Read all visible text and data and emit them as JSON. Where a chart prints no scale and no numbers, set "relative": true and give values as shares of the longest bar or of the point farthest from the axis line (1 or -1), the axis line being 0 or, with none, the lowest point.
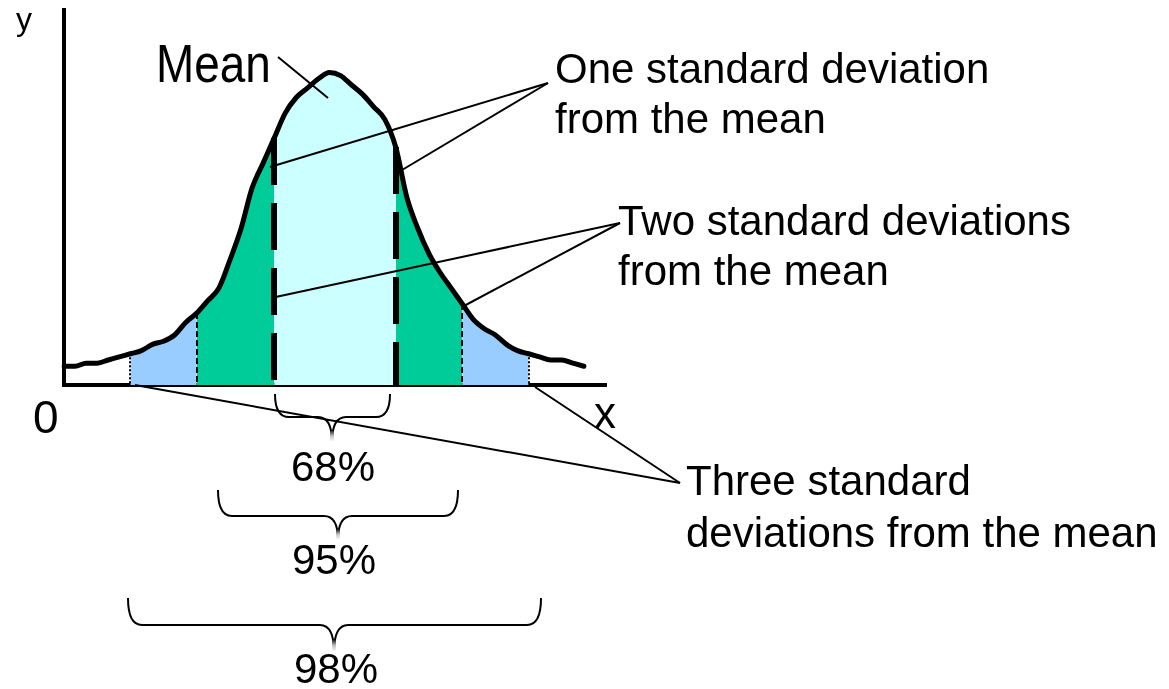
{
  "chart_data": {
    "type": "area",
    "xlabel": "x",
    "ylabel": "y",
    "relative": true,
    "annotations": [
      "Mean",
      "One standard deviation from the mean",
      "Two standard deviations from the mean",
      "Three standard deviations from the mean",
      "0",
      "68%",
      "95%",
      "98%"
    ],
    "categories": [
      null,
      null,
      null,
      null,
      null,
      null,
      null,
      null,
      null,
      null,
      null,
      null,
      null,
      null,
      null,
      null,
      null,
      null,
      null,
      null,
      null,
      null,
      null,
      null,
      null,
      null,
      null,
      null,
      null,
      null,
      null,
      null,
      null,
      null,
      null,
      null,
      null,
      null,
      null,
      null,
      null,
      null,
      null,
      null,
      null,
      null,
      null,
      null,
      null,
      null
    ],
    "series": [
      {
        "color": "#99ccff",
        "line_style": "dotted",
        "values": [
          null,
          null,
          null,
          null,
          null,
          null,
          0.1,
          0.11,
          0.13,
          0.14,
          0.16,
          0.2,
          0.23,
          null,
          null,
          null,
          null,
          null,
          null,
          null,
          null,
          null,
          null,
          null,
          null,
          null,
          null,
          null,
          null,
          null,
          null,
          null,
          null,
          null,
          null,
          null,
          0.26,
          0.21,
          0.18,
          0.16,
          0.13,
          0.11,
          0.1,
          null,
          null,
          null,
          null,
          null,
          null,
          null
        ]
      },
      {
        "color": "#00cc99",
        "line_style": "dashed",
        "values": [
          null,
          null,
          null,
          null,
          null,
          null,
          null,
          null,
          null,
          null,
          null,
          null,
          0.23,
          0.27,
          0.31,
          0.4,
          0.5,
          0.63,
          0.71,
          0.79,
          null,
          null,
          null,
          null,
          null,
          null,
          null,
          null,
          null,
          null,
          0.76,
          0.6,
          0.5,
          0.42,
          0.36,
          0.31,
          0.26,
          null,
          null,
          null,
          null,
          null,
          null,
          null,
          null,
          null,
          null,
          null,
          null,
          null
        ]
      },
      {
        "color": "#ccffff",
        "line_style": "dashed",
        "values": [
          null,
          null,
          null,
          null,
          null,
          null,
          null,
          null,
          null,
          null,
          null,
          null,
          null,
          null,
          null,
          null,
          null,
          null,
          null,
          0.79,
          0.87,
          0.92,
          0.95,
          0.98,
          1,
          0.99,
          0.96,
          0.93,
          0.89,
          0.85,
          0.76,
          null,
          null,
          null,
          null,
          null,
          null,
          null,
          null,
          null,
          null,
          null,
          null,
          null,
          null,
          null,
          null,
          null,
          null,
          null
        ]
      },
      {
        "type": "line",
        "color": "#000000",
        "values": [
          0.06,
          0.06,
          0.07,
          0.07,
          0.08,
          0.09,
          0.1,
          0.11,
          0.13,
          0.14,
          0.16,
          0.2,
          0.23,
          0.27,
          0.31,
          0.4,
          0.5,
          0.63,
          0.71,
          0.79,
          0.87,
          0.92,
          0.95,
          0.98,
          1,
          0.99,
          0.96,
          0.93,
          0.89,
          0.85,
          0.76,
          0.6,
          0.5,
          0.42,
          0.36,
          0.31,
          0.26,
          0.21,
          0.18,
          0.16,
          0.13,
          0.11,
          0.1,
          0.09,
          0.08,
          0.08,
          0.07,
          0.06,
          null,
          null
        ]
      }
    ]
  }
}
